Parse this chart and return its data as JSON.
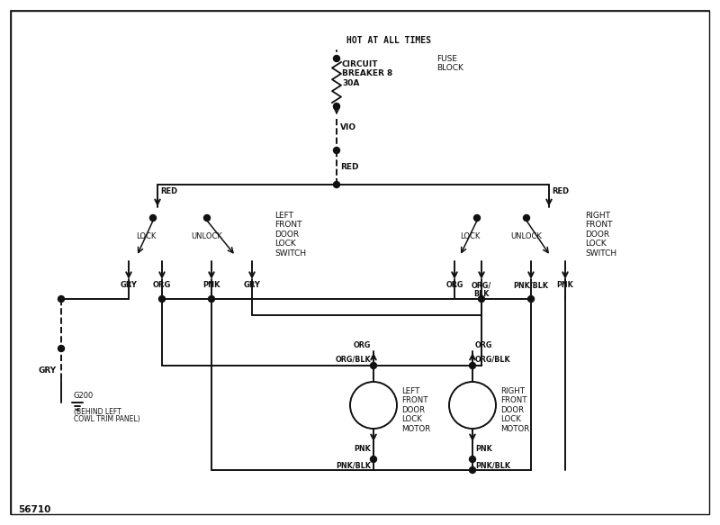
{
  "figure_number": "56710",
  "header_text": "HOT AT ALL TIMES",
  "fuse_block_label": "FUSE\nBLOCK",
  "circuit_breaker_label": "CIRCUIT\nBREAKER 8\n30A",
  "switch_left_label": "LEFT\nFRONT\nDOOR\nLOCK\nSWITCH",
  "switch_right_label": "RIGHT\nFRONT\nDOOR\nLOCK\nSWITCH",
  "motor_left_label": "LEFT\nFRONT\nDOOR\nLOCK\nMOTOR",
  "motor_right_label": "RIGHT\nFRONT\nDOOR\nLOCK\nMOTOR",
  "ground_label": "G200\n(BEHIND LEFT\nCOWL TRIM PANEL)",
  "lc": "#111111",
  "bg": "#f5f5f5"
}
